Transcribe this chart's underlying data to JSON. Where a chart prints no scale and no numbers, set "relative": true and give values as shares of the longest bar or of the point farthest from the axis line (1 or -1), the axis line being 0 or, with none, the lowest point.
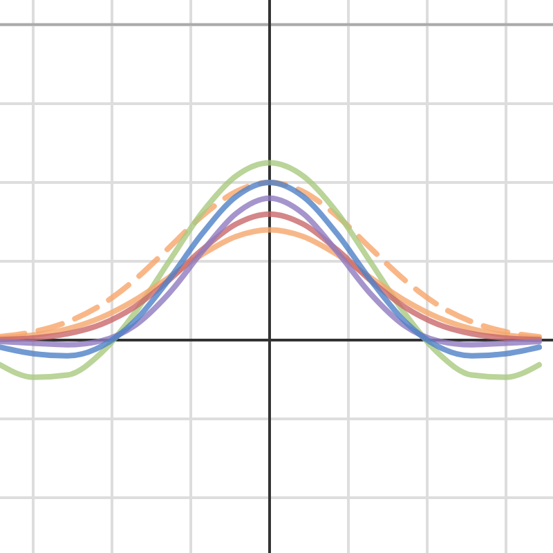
{
  "chart_data": {
    "type": "line",
    "relative": true,
    "grid": true,
    "line_style": "solid",
    "marker": "none",
    "categories": [
      null,
      null,
      null,
      null,
      null,
      null,
      null,
      null,
      null,
      null,
      null,
      null,
      null,
      null,
      null,
      null,
      null
    ],
    "ref_lines": [
      {
        "axis": "y",
        "value": 1.78,
        "color": "#aaaaaa"
      }
    ],
    "series": [
      {
        "color": "#f7a56a",
        "line_style": "dashed",
        "values": [
          0.019,
          0.047,
          0.103,
          0.198,
          0.34,
          0.518,
          0.7,
          0.837,
          0.889,
          0.837,
          0.7,
          0.518,
          0.34,
          0.198,
          0.103,
          0.047,
          0.019
        ]
      },
      {
        "color": "#a9c97f",
        "values": [
          -0.139,
          -0.21,
          -0.197,
          -0.073,
          0.153,
          0.439,
          0.72,
          0.925,
          1,
          0.925,
          0.72,
          0.439,
          0.153,
          -0.073,
          -0.197,
          -0.21,
          -0.139
        ]
      },
      {
        "color": "#f5a66b",
        "values": [
          0.011,
          0.028,
          0.063,
          0.127,
          0.225,
          0.352,
          0.483,
          0.584,
          0.622,
          0.584,
          0.483,
          0.352,
          0.225,
          0.127,
          0.063,
          0.028,
          0.011
        ]
      },
      {
        "color": "#c9686a",
        "values": [
          0.003,
          0.012,
          0.036,
          0.089,
          0.188,
          0.336,
          0.51,
          0.654,
          0.711,
          0.654,
          0.51,
          0.336,
          0.188,
          0.089,
          0.036,
          0.012,
          0.003
        ]
      },
      {
        "color": "#8e7bbf",
        "values": [
          -0.008,
          -0.018,
          -0.026,
          -0.004,
          0.082,
          0.26,
          0.499,
          0.713,
          0.8,
          0.713,
          0.499,
          0.26,
          0.082,
          -0.004,
          -0.026,
          -0.018,
          -0.008
        ]
      },
      {
        "color": "#4f81c7",
        "values": [
          -0.04,
          -0.077,
          -0.089,
          -0.036,
          0.108,
          0.338,
          0.6,
          0.809,
          0.889,
          0.809,
          0.6,
          0.338,
          0.108,
          -0.036,
          -0.089,
          -0.077,
          -0.04
        ]
      }
    ]
  }
}
